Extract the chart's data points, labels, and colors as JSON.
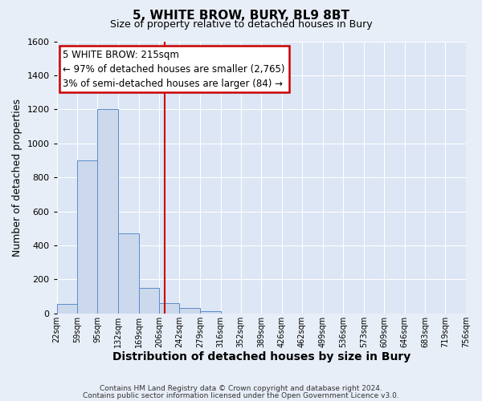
{
  "title": "5, WHITE BROW, BURY, BL9 8BT",
  "subtitle": "Size of property relative to detached houses in Bury",
  "xlabel": "Distribution of detached houses by size in Bury",
  "ylabel": "Number of detached properties",
  "bin_edges": [
    22,
    59,
    95,
    132,
    169,
    206,
    242,
    279,
    316,
    352,
    389,
    426,
    462,
    499,
    536,
    573,
    609,
    646,
    683,
    719,
    756
  ],
  "bar_heights": [
    55,
    900,
    1200,
    470,
    150,
    60,
    30,
    15,
    0,
    0,
    0,
    0,
    0,
    0,
    0,
    0,
    0,
    0,
    0,
    0
  ],
  "bar_color": "#ccd9ed",
  "bar_edge_color": "#5b8cc8",
  "vline_x": 215,
  "vline_color": "#cc0000",
  "ylim": [
    0,
    1600
  ],
  "yticks": [
    0,
    200,
    400,
    600,
    800,
    1000,
    1200,
    1400,
    1600
  ],
  "annotation_title": "5 WHITE BROW: 215sqm",
  "annotation_line1": "← 97% of detached houses are smaller (2,765)",
  "annotation_line2": "3% of semi-detached houses are larger (84) →",
  "footer_line1": "Contains HM Land Registry data © Crown copyright and database right 2024.",
  "footer_line2": "Contains public sector information licensed under the Open Government Licence v3.0.",
  "tick_labels": [
    "22sqm",
    "59sqm",
    "95sqm",
    "132sqm",
    "169sqm",
    "206sqm",
    "242sqm",
    "279sqm",
    "316sqm",
    "352sqm",
    "389sqm",
    "426sqm",
    "462sqm",
    "499sqm",
    "536sqm",
    "573sqm",
    "609sqm",
    "646sqm",
    "683sqm",
    "719sqm",
    "756sqm"
  ],
  "background_color": "#e8eef7",
  "plot_bg_color": "#dce6f5",
  "grid_color": "#ffffff",
  "title_fontsize": 11,
  "subtitle_fontsize": 9,
  "ylabel_fontsize": 9,
  "xlabel_fontsize": 10,
  "tick_fontsize": 7,
  "ytick_fontsize": 8,
  "footer_fontsize": 6.5
}
